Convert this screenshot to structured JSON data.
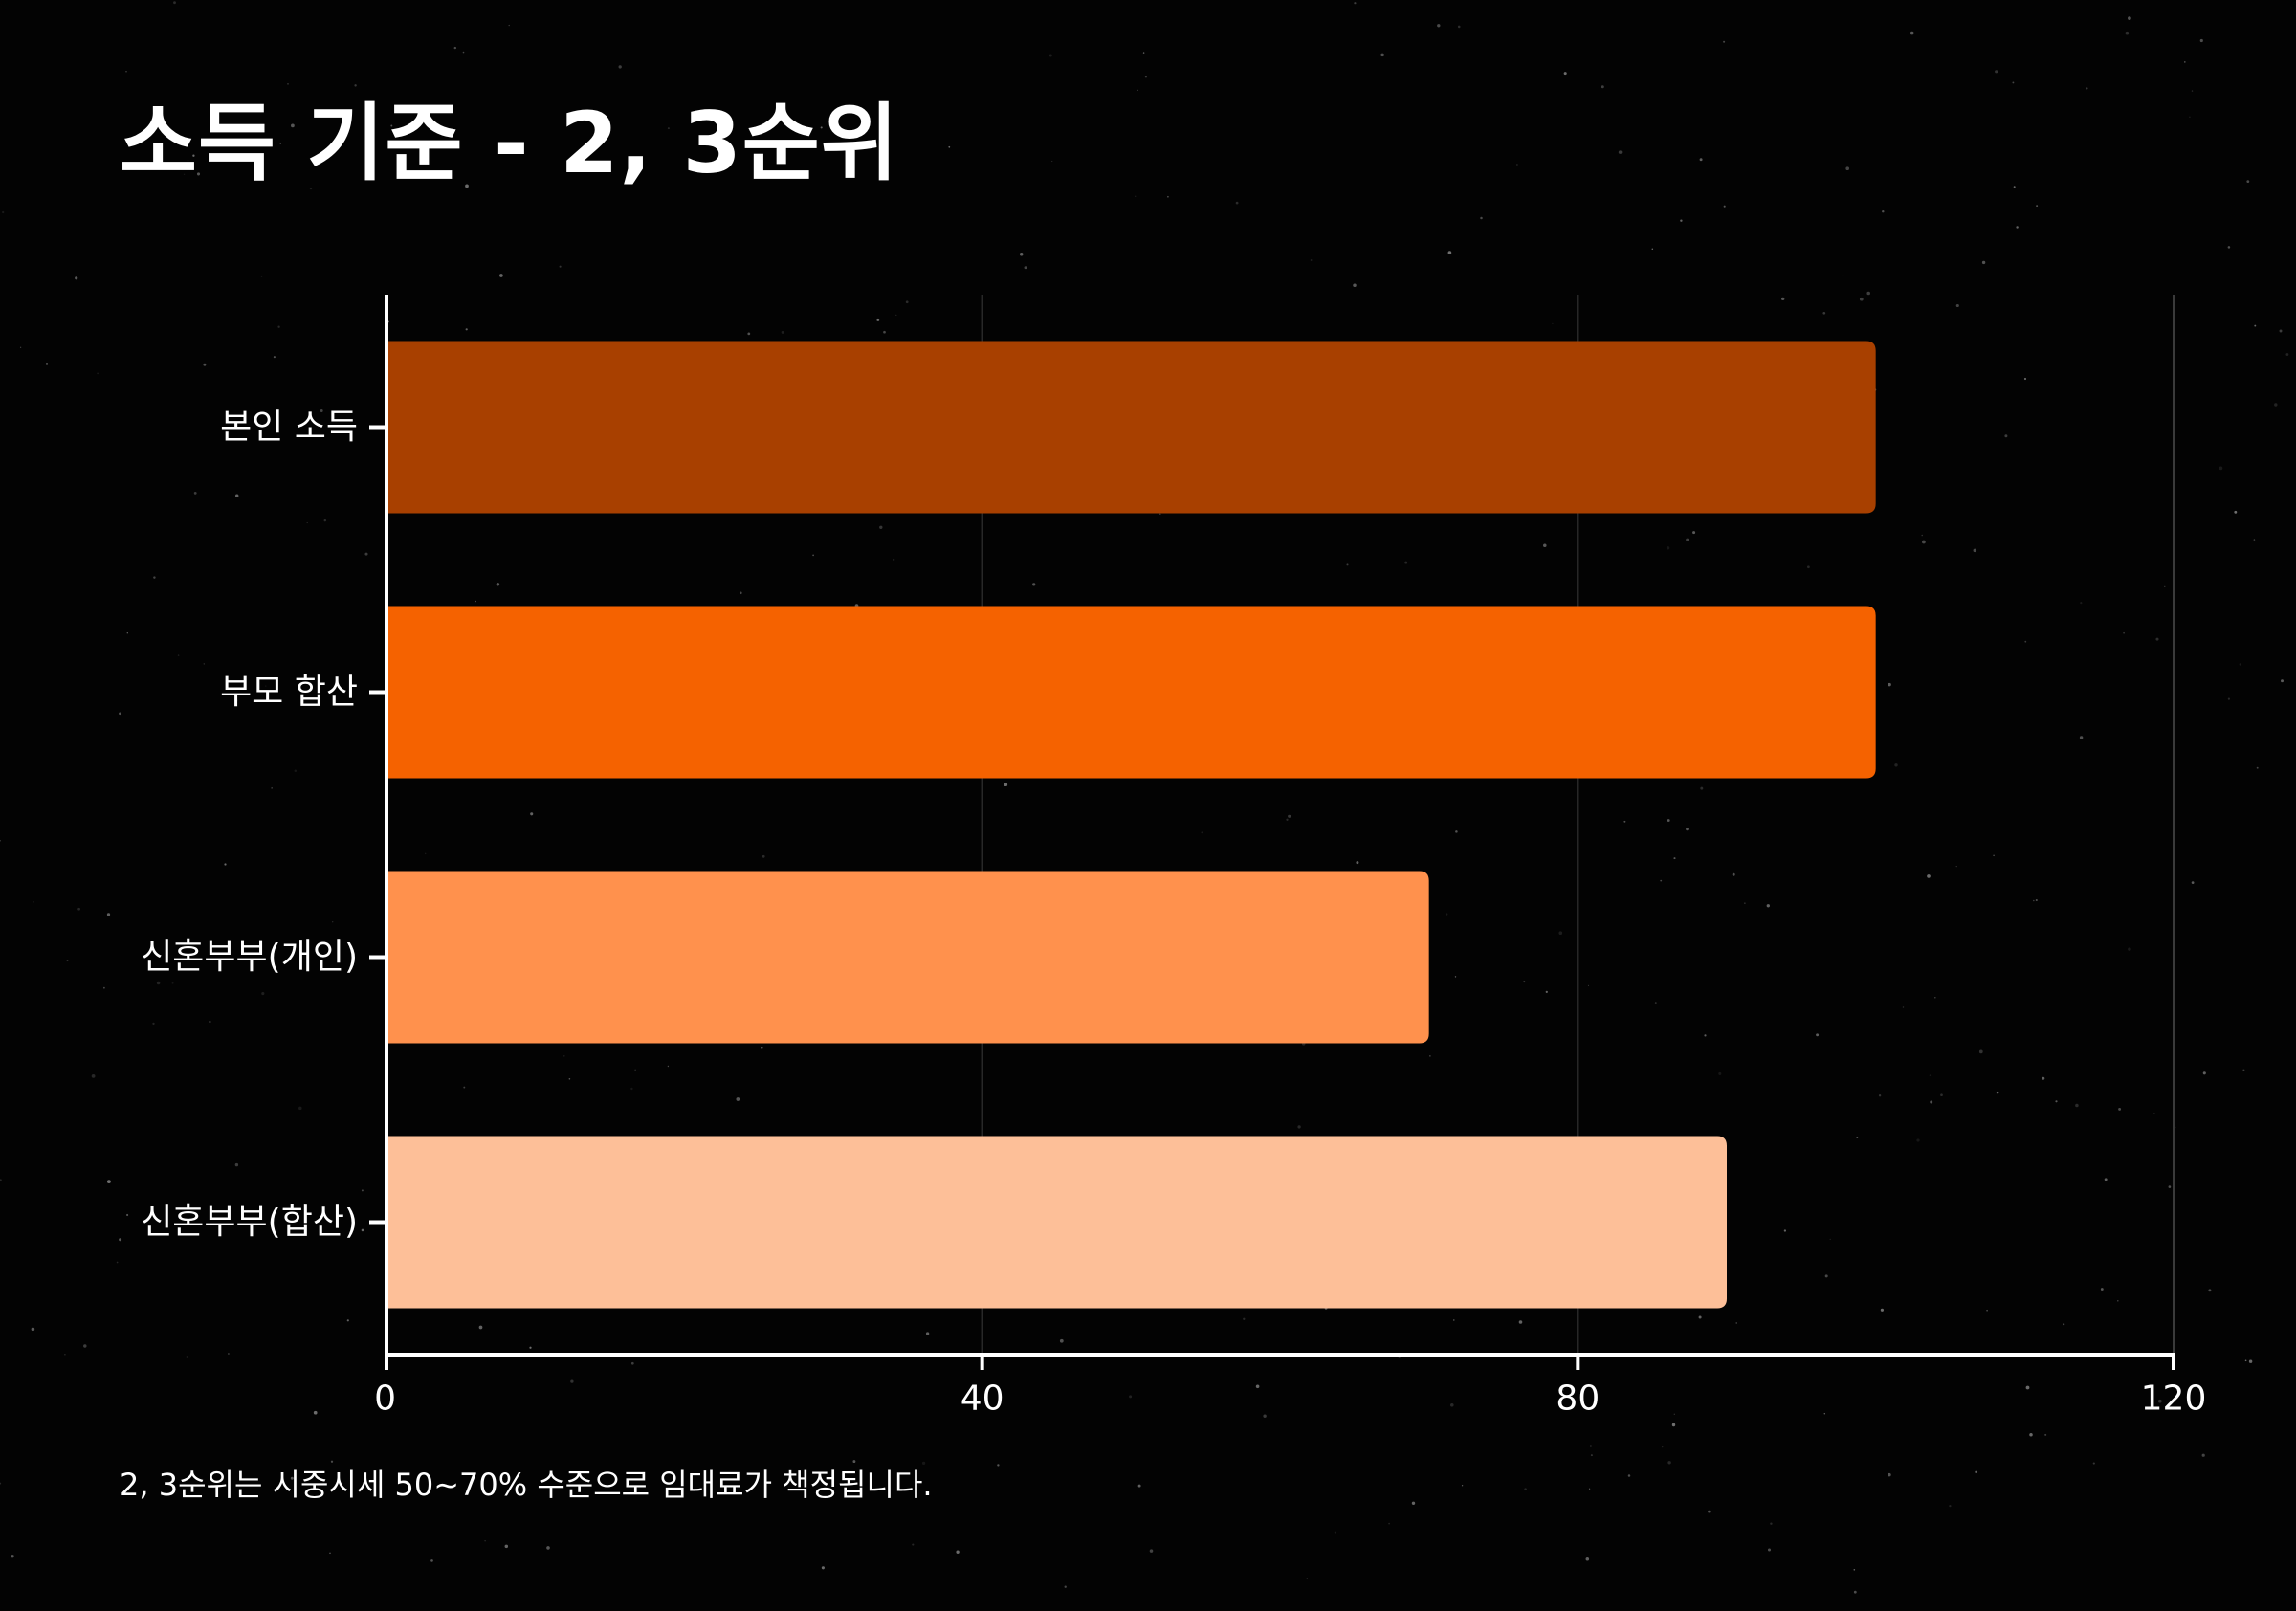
{
  "title": "소득 기준 - 2, 3순위",
  "footnote": "2, 3순위는 시중시세 50~70% 수준으로 임대료가 책정됩니다.",
  "chart_data": {
    "type": "bar",
    "orientation": "horizontal",
    "categories": [
      "본인 소득",
      "부모 합산",
      "신혼부부(개인)",
      "신혼부부(합산)"
    ],
    "values": [
      100,
      100,
      70,
      90
    ],
    "colors": [
      "#A84000",
      "#F56200",
      "#FF914D",
      "#FDBF98"
    ],
    "xlim": [
      0,
      120
    ],
    "xticks": [
      "0",
      "40",
      "80",
      "120"
    ],
    "tick_values": [
      0,
      40,
      80,
      120
    ],
    "grid": true,
    "axis_color": "#FFFFFF",
    "grid_color": "#3A3A3A"
  }
}
